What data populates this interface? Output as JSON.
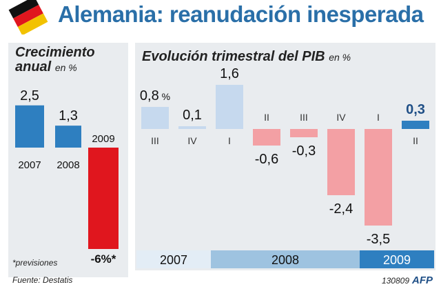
{
  "header": {
    "title": "Alemania: reanudación inesperada"
  },
  "left_panel": {
    "title_line1": "Crecimiento",
    "title_line2": "anual",
    "unit": "en %",
    "footnote": "*previsiones",
    "source": "Fuente: Destatis"
  },
  "right_panel": {
    "title": "Evolución trimestral del PIB",
    "unit": "en %"
  },
  "credit": {
    "code": "130809",
    "agency": "AFP"
  },
  "colors": {
    "title_blue": "#2a6fa8",
    "bar_blue": "#2e7fc0",
    "bar_light_blue": "#c6d9ee",
    "bar_red": "#e0161e",
    "bar_pink": "#f3a0a4",
    "band_2007": "#e3edf6",
    "band_2008": "#9ec3e0",
    "band_2009": "#2e7fc0"
  },
  "chart_data": [
    {
      "type": "bar",
      "title": "Crecimiento anual",
      "unit": "en %",
      "categories": [
        "2007",
        "2008",
        "2009"
      ],
      "values": [
        2.5,
        1.3,
        -6
      ],
      "value_labels": [
        "2,5",
        "1,3",
        "-6%*"
      ],
      "forecast": [
        false,
        false,
        true
      ]
    },
    {
      "type": "bar",
      "title": "Evolución trimestral del PIB",
      "unit": "en %",
      "categories": [
        "III",
        "IV",
        "I",
        "II",
        "III",
        "IV",
        "I",
        "II"
      ],
      "values": [
        0.8,
        0.1,
        1.6,
        -0.6,
        -0.3,
        -2.4,
        -3.5,
        0.3
      ],
      "value_labels": [
        "0,8",
        "0,1",
        "1,6",
        "-0,6",
        "-0,3",
        "-2,4",
        "-3,5",
        "0,3"
      ],
      "first_label_suffix": "%",
      "years": [
        {
          "label": "2007",
          "quarters": 2
        },
        {
          "label": "2008",
          "quarters": 4
        },
        {
          "label": "2009",
          "quarters": 2
        }
      ]
    }
  ]
}
